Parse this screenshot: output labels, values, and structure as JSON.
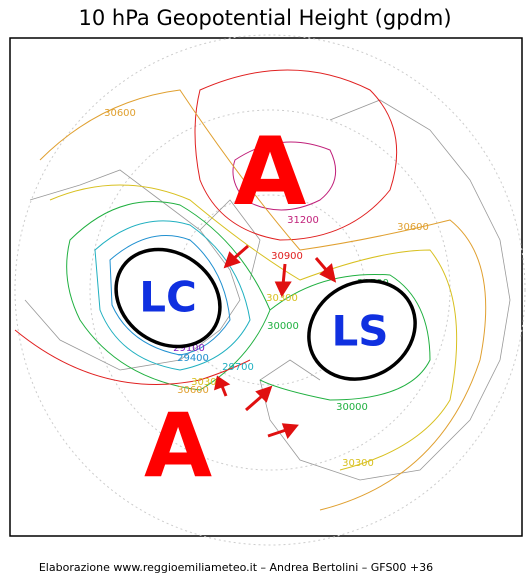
{
  "title": "10 hPa Geopotential Height (gpdm)",
  "contour_labels": [
    {
      "text": "30600",
      "color": "#e0a030"
    },
    {
      "text": "31200",
      "color": "#c0207a"
    },
    {
      "text": "30900",
      "color": "#e02020"
    },
    {
      "text": "30600",
      "color": "#e0a030"
    },
    {
      "text": "29700",
      "color": "#20b040"
    },
    {
      "text": "30300",
      "color": "#d8c020"
    },
    {
      "text": "30000",
      "color": "#20b040"
    },
    {
      "text": "29100",
      "color": "#8020c0"
    },
    {
      "text": "29400",
      "color": "#2090d0"
    },
    {
      "text": "29700",
      "color": "#20b0c0"
    },
    {
      "text": "30300",
      "color": "#d8c020"
    },
    {
      "text": "30600",
      "color": "#e0a030"
    },
    {
      "text": "30000",
      "color": "#20b040"
    },
    {
      "text": "30300",
      "color": "#d8c020"
    }
  ],
  "systems": [
    {
      "text": "A",
      "color": "#ff0000"
    },
    {
      "text": "LC",
      "color": "#1030e0"
    },
    {
      "text": "LS",
      "color": "#1030e0"
    },
    {
      "text": "A",
      "color": "#ff0000"
    }
  ],
  "footer": "Elaborazione www.reggioemiliameteo.it – Andrea Bertolini – GFS00 +36"
}
